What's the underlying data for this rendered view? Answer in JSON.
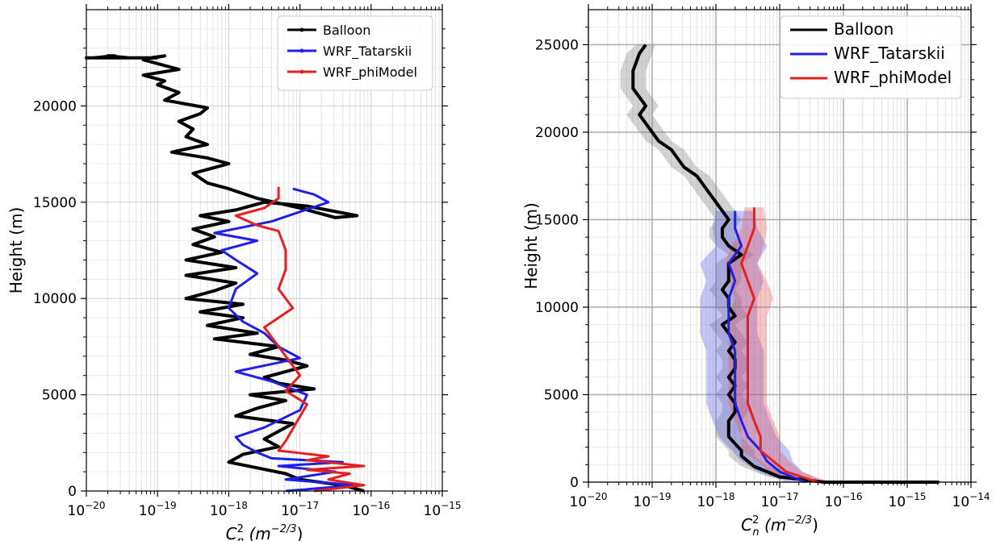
{
  "chart_data": [
    {
      "type": "line",
      "xlabel": "C_n^2 (m^-2/3)",
      "xlabel_base": "C",
      "xlabel_sup": "2",
      "xlabel_sub": "n",
      "xlabel_unit_pre": " (m",
      "xlabel_unit_sup": "−2/3",
      "xlabel_unit_post": ")",
      "ylabel": "Height (m)",
      "xscale": "log",
      "xlim_exp": [
        -20,
        -15
      ],
      "ylim": [
        0,
        25000
      ],
      "xticks": [
        "10",
        "10",
        "10",
        "10",
        "10",
        "10"
      ],
      "xtick_exps": [
        "−20",
        "−19",
        "−18",
        "−17",
        "−16",
        "−15"
      ],
      "yticks": [
        "0",
        "5000",
        "10000",
        "15000",
        "20000"
      ],
      "grid": true,
      "legend_position": "top-right",
      "series": [
        {
          "name": "Balloon",
          "color": "#000000",
          "x_exp": [
            -16.1,
            -16.4,
            -17.0,
            -17.2,
            -17.6,
            -18.0,
            -17.8,
            -17.3,
            -17.5,
            -17.3,
            -17.1,
            -17.9,
            -17.6,
            -17.2,
            -17.7,
            -16.8,
            -17.3,
            -17.5,
            -17.2,
            -16.9,
            -17.2,
            -17.7,
            -17.3,
            -18.2,
            -17.6,
            -18.3,
            -17.8,
            -18.4,
            -17.8,
            -18.6,
            -18.2,
            -17.9,
            -18.6,
            -17.9,
            -18.6,
            -18.1,
            -18.5,
            -18.2,
            -18.5,
            -18.0,
            -18.4,
            -17.9,
            -17.5,
            -16.9,
            -16.2,
            -16.5,
            -17.0,
            -17.6,
            -18.0,
            -18.3,
            -18.5,
            -18.0,
            -18.3,
            -18.8,
            -18.3,
            -18.6,
            -18.5,
            -18.7,
            -18.4,
            -18.3,
            -18.9,
            -18.7,
            -19.0,
            -18.9,
            -19.2,
            -18.7,
            -19.0,
            -19.2,
            -18.9,
            -19.1,
            -19.4,
            -19.7,
            -19.6,
            -19.9,
            -19.4,
            -20.0,
            -19.0
          ],
          "y": [
            0,
            300,
            600,
            900,
            1200,
            1500,
            1900,
            2300,
            2700,
            3100,
            3500,
            3900,
            4300,
            4700,
            5000,
            5300,
            5600,
            5900,
            6200,
            6500,
            6800,
            7100,
            7500,
            7900,
            8200,
            8600,
            9000,
            9300,
            9700,
            10000,
            10400,
            10800,
            11200,
            11600,
            12000,
            12400,
            12800,
            13200,
            13600,
            14000,
            14300,
            14600,
            15000,
            14800,
            14300,
            14200,
            14700,
            15200,
            15700,
            16000,
            16500,
            17000,
            17300,
            17600,
            18000,
            18400,
            18800,
            19200,
            19600,
            19900,
            20300,
            20700,
            21100,
            21300,
            21600,
            21900,
            22200,
            22400,
            22600,
            22500,
            22500,
            22600,
            22600,
            22500,
            22500,
            22500,
            22500
          ]
        },
        {
          "name": "WRF_Tatarskii",
          "color": "#1f1fe6",
          "x_exp": [
            -17.2,
            -16.2,
            -17.2,
            -16.5,
            -17.3,
            -16.4,
            -17.4,
            -17.6,
            -17.8,
            -17.9,
            -17.5,
            -17.0,
            -16.9,
            -17.4,
            -17.9,
            -17.0,
            -17.3,
            -17.5,
            -17.8,
            -18.0,
            -17.9,
            -17.6,
            -17.9,
            -18.1,
            -17.6,
            -18.2,
            -17.4,
            -17.0,
            -16.6,
            -16.8,
            -17.1
          ],
          "y": [
            0,
            300,
            600,
            1000,
            1300,
            1500,
            1700,
            2000,
            2400,
            2800,
            3300,
            4200,
            5000,
            5700,
            6200,
            6900,
            7500,
            8200,
            8800,
            9500,
            10500,
            11300,
            12000,
            12500,
            13000,
            13400,
            14000,
            14500,
            15000,
            15400,
            15700
          ]
        },
        {
          "name": "WRF_phiModel",
          "color": "#e61f1f",
          "x_exp": [
            -16.8,
            -16.1,
            -16.6,
            -16.3,
            -16.9,
            -16.1,
            -16.9,
            -16.6,
            -17.3,
            -17.2,
            -16.9,
            -17.2,
            -17.0,
            -17.2,
            -17.5,
            -17.1,
            -17.3,
            -17.2,
            -17.2,
            -17.3,
            -17.6,
            -17.9,
            -17.5,
            -17.3,
            -17.3
          ],
          "y": [
            0,
            300,
            600,
            900,
            1100,
            1300,
            1600,
            1800,
            2100,
            2600,
            4500,
            5200,
            6000,
            7000,
            8500,
            9500,
            10500,
            11500,
            12500,
            13500,
            13800,
            14300,
            14700,
            15200,
            15800
          ]
        }
      ]
    },
    {
      "type": "line",
      "xlabel": "C_n^2 (m^-2/3)",
      "xlabel_base": "C",
      "xlabel_sup": "2",
      "xlabel_sub": "n",
      "xlabel_unit_pre": " (m",
      "xlabel_unit_sup": "−2/3",
      "xlabel_unit_post": ")",
      "ylabel": "Height (m)",
      "xscale": "log",
      "xlim_exp": [
        -20,
        -14
      ],
      "ylim": [
        0,
        27000
      ],
      "xticks": [
        "10",
        "10",
        "10",
        "10",
        "10",
        "10",
        "10"
      ],
      "xtick_exps": [
        "−20",
        "−19",
        "−18",
        "−17",
        "−16",
        "−15",
        "−14"
      ],
      "yticks": [
        "0",
        "5000",
        "10000",
        "15000",
        "20000",
        "25000"
      ],
      "grid": true,
      "legend_position": "top-right",
      "series": [
        {
          "name": "Balloon",
          "color": "#000000",
          "band": "#808080",
          "x_exp": [
            -14.5,
            -16.3,
            -17.0,
            -17.2,
            -17.4,
            -17.5,
            -17.6,
            -17.6,
            -17.7,
            -17.8,
            -17.8,
            -17.8,
            -17.7,
            -17.7,
            -17.8,
            -17.7,
            -17.8,
            -17.7,
            -17.7,
            -17.8,
            -17.7,
            -17.8,
            -17.9,
            -17.7,
            -17.8,
            -17.8,
            -17.9,
            -17.8,
            -17.8,
            -17.8,
            -17.6,
            -17.8,
            -17.9,
            -17.9,
            -17.8,
            -17.9,
            -18.0,
            -18.1,
            -18.2,
            -18.3,
            -18.5,
            -18.6,
            -18.7,
            -18.9,
            -19.0,
            -19.1,
            -19.2,
            -19.1,
            -19.3,
            -19.3,
            -19.2,
            -19.1
          ],
          "y": [
            0,
            0,
            300,
            600,
            900,
            1200,
            1500,
            1800,
            2200,
            2600,
            3000,
            3500,
            4000,
            4500,
            5000,
            5500,
            6000,
            6500,
            7000,
            7500,
            8000,
            8500,
            9000,
            9500,
            10000,
            10500,
            11000,
            11500,
            12000,
            12500,
            13000,
            13500,
            14000,
            14500,
            15000,
            15500,
            16000,
            16500,
            17000,
            17500,
            18000,
            18500,
            19000,
            19500,
            20000,
            20500,
            21000,
            21500,
            22500,
            23500,
            24500,
            25000
          ],
          "band_width": [
            0.05,
            0.12,
            0.18,
            0.2,
            0.2,
            0.2,
            0.2,
            0.2,
            0.2,
            0.2,
            0.2,
            0.2,
            0.2,
            0.2,
            0.2,
            0.2,
            0.2,
            0.2,
            0.2,
            0.2,
            0.2,
            0.2,
            0.2,
            0.2,
            0.2,
            0.2,
            0.2,
            0.2,
            0.2,
            0.2,
            0.2,
            0.2,
            0.2,
            0.2,
            0.2,
            0.2,
            0.2,
            0.2,
            0.2,
            0.2,
            0.2,
            0.2,
            0.2,
            0.2,
            0.2,
            0.2,
            0.2,
            0.2,
            0.2,
            0.2,
            0.2,
            0.15
          ]
        },
        {
          "name": "WRF_Tatarskii",
          "color": "#1f1fe6",
          "band": "#5a5ae6",
          "x_exp": [
            -16.6,
            -17.0,
            -17.2,
            -17.3,
            -17.5,
            -17.6,
            -17.7,
            -17.7,
            -17.7,
            -17.7,
            -17.8,
            -17.8,
            -17.8,
            -17.7,
            -17.8,
            -17.6,
            -17.7,
            -17.7
          ],
          "y": [
            0,
            600,
            1200,
            1800,
            2600,
            3500,
            4500,
            5500,
            6500,
            7500,
            8500,
            9500,
            10500,
            11500,
            12500,
            13500,
            14500,
            15500
          ],
          "band_width": [
            0.3,
            0.35,
            0.4,
            0.45,
            0.45,
            0.45,
            0.45,
            0.45,
            0.45,
            0.45,
            0.45,
            0.45,
            0.45,
            0.45,
            0.45,
            0.4,
            0.35,
            0.3
          ]
        },
        {
          "name": "WRF_phiModel",
          "color": "#e61f1f",
          "band": "#e65a5a",
          "x_exp": [
            -16.4,
            -16.9,
            -17.1,
            -17.3,
            -17.3,
            -17.4,
            -17.5,
            -17.5,
            -17.5,
            -17.5,
            -17.5,
            -17.5,
            -17.4,
            -17.5,
            -17.6,
            -17.5,
            -17.4,
            -17.4
          ],
          "y": [
            0,
            600,
            1200,
            1800,
            2600,
            3500,
            4500,
            5500,
            6500,
            7500,
            8500,
            9500,
            10500,
            11500,
            12500,
            13500,
            14500,
            15700
          ],
          "band_width": [
            0.2,
            0.25,
            0.25,
            0.3,
            0.3,
            0.3,
            0.3,
            0.3,
            0.3,
            0.3,
            0.3,
            0.3,
            0.3,
            0.3,
            0.25,
            0.25,
            0.2,
            0.15
          ]
        }
      ]
    }
  ]
}
